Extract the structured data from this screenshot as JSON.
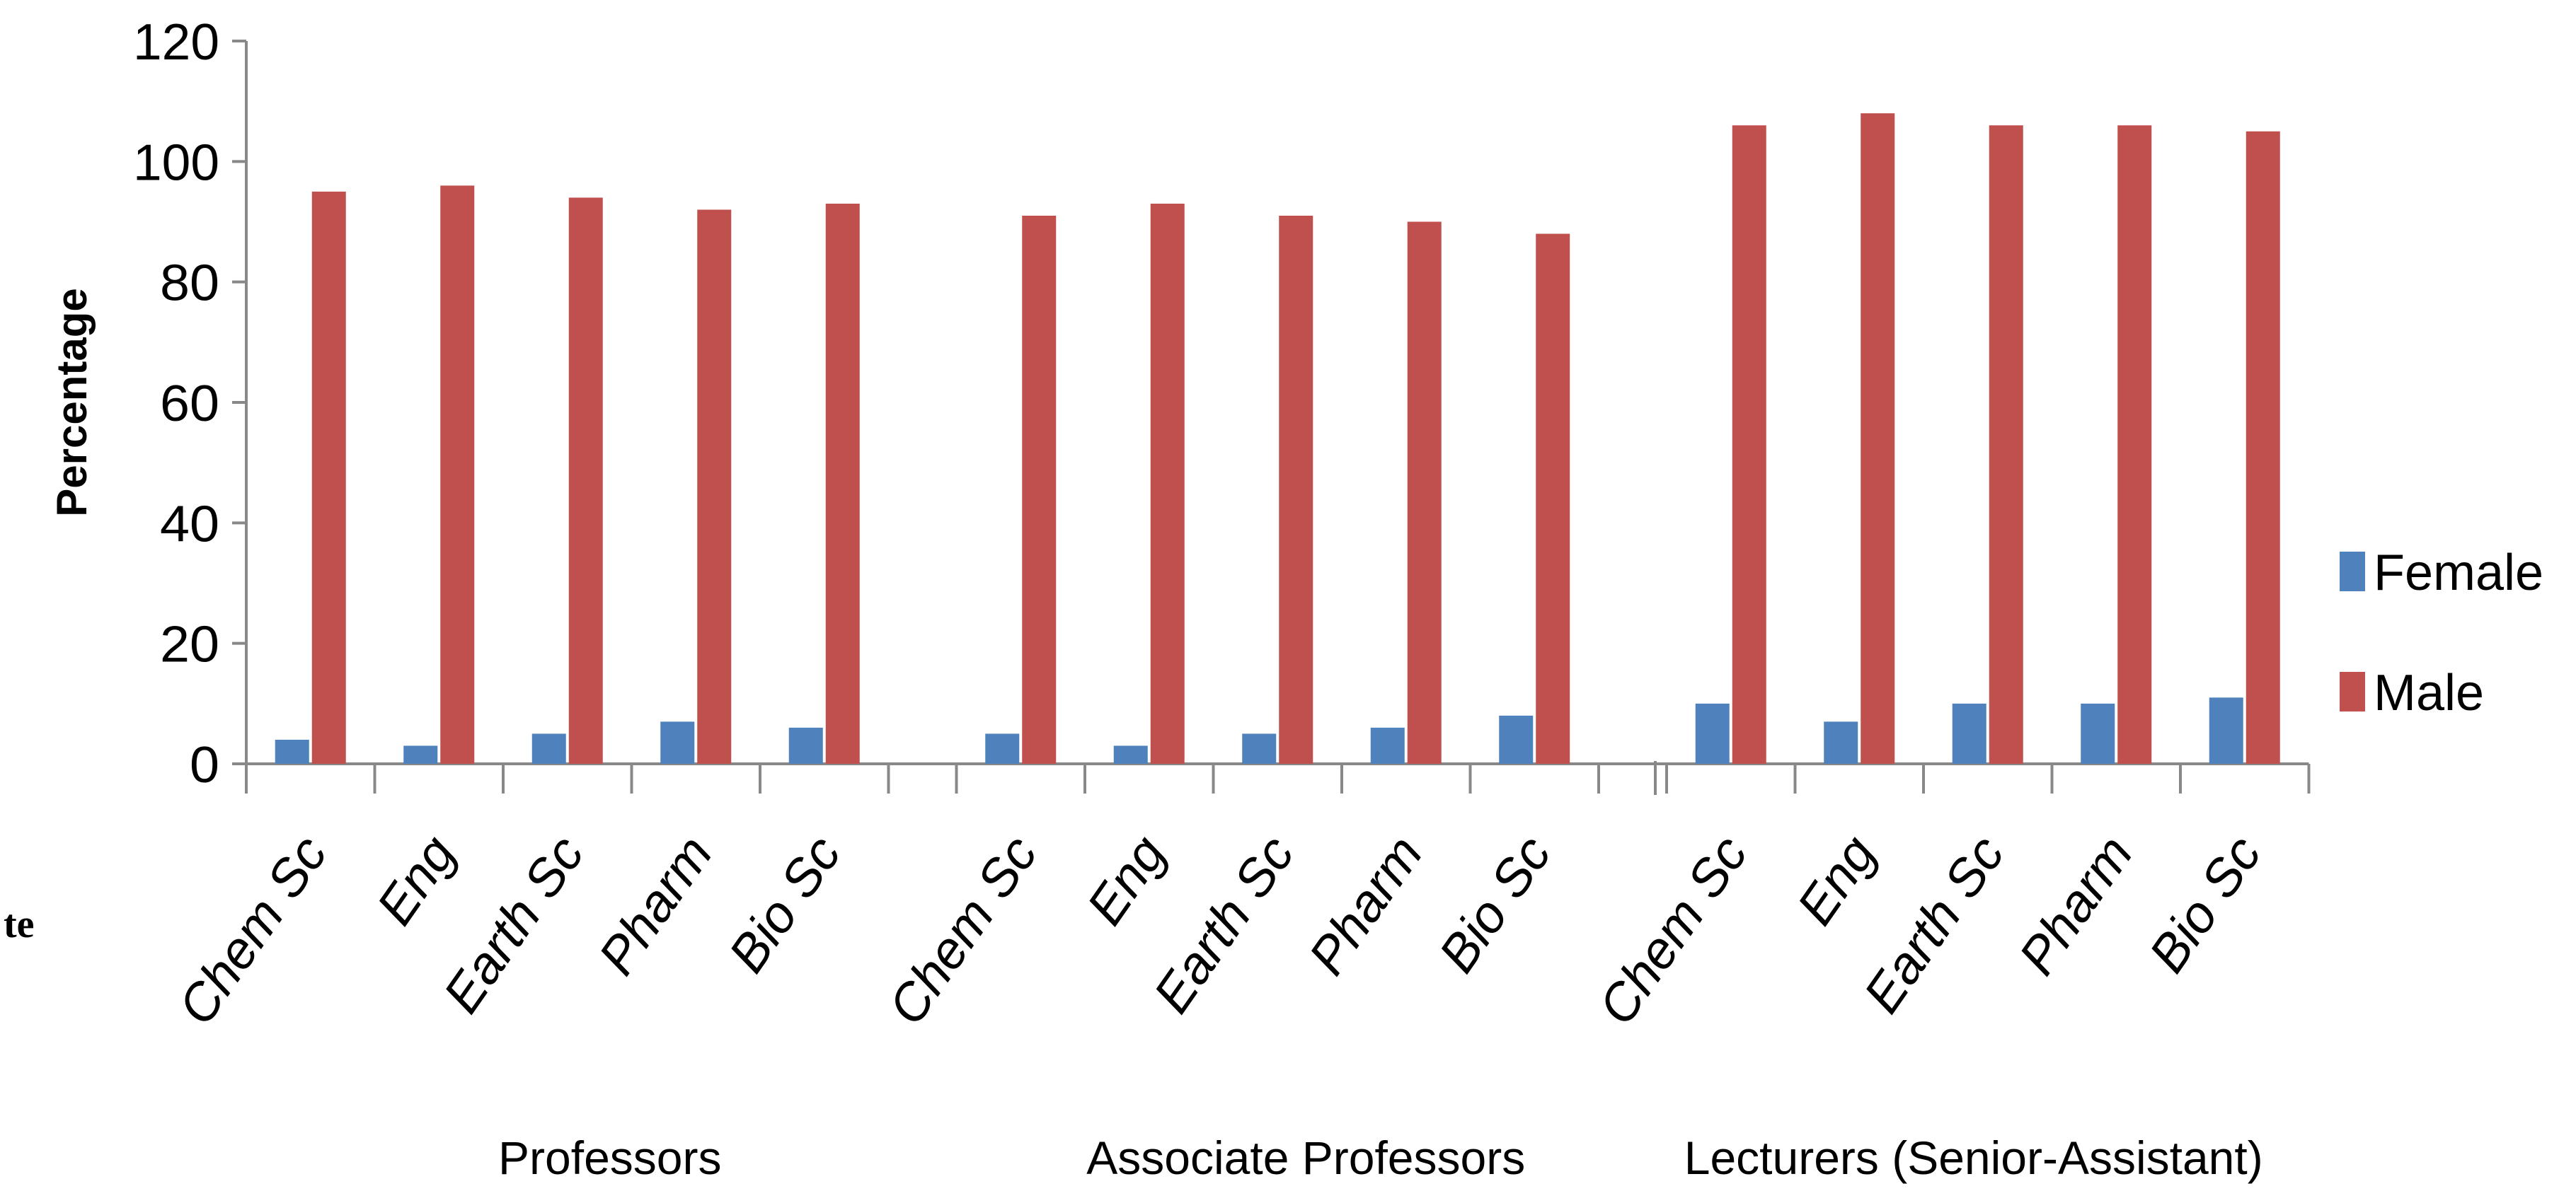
{
  "left_fragment": "te",
  "chart_data": {
    "type": "bar",
    "ylabel": "Percentage",
    "ylim": [
      0,
      120
    ],
    "yticks": [
      "0",
      "20",
      "40",
      "60",
      "80",
      "100",
      "120"
    ],
    "groups": [
      {
        "label": "Professors",
        "categories": [
          "Chem Sc",
          "Eng",
          "Earth Sc",
          "Pharm",
          "Bio Sc"
        ]
      },
      {
        "label": "Associate  Professors",
        "categories": [
          "Chem Sc",
          "Eng",
          "Earth Sc",
          "Pharm",
          "Bio Sc"
        ]
      },
      {
        "label": "Lecturers (Senior-Assistant)",
        "categories": [
          "Chem Sc",
          "Eng",
          "Earth Sc",
          "Pharm",
          "Bio Sc"
        ]
      }
    ],
    "series": [
      {
        "name": "Female",
        "color": "#4F81BD",
        "values": [
          4,
          3,
          5,
          7,
          6,
          5,
          3,
          5,
          6,
          8,
          10,
          7,
          10,
          10,
          11
        ]
      },
      {
        "name": "Male",
        "color": "#C0504D",
        "values": [
          95,
          96,
          94,
          92,
          93,
          91,
          93,
          91,
          90,
          88,
          106,
          108,
          106,
          106,
          105
        ]
      }
    ],
    "legend_position": "right",
    "grid": false
  }
}
